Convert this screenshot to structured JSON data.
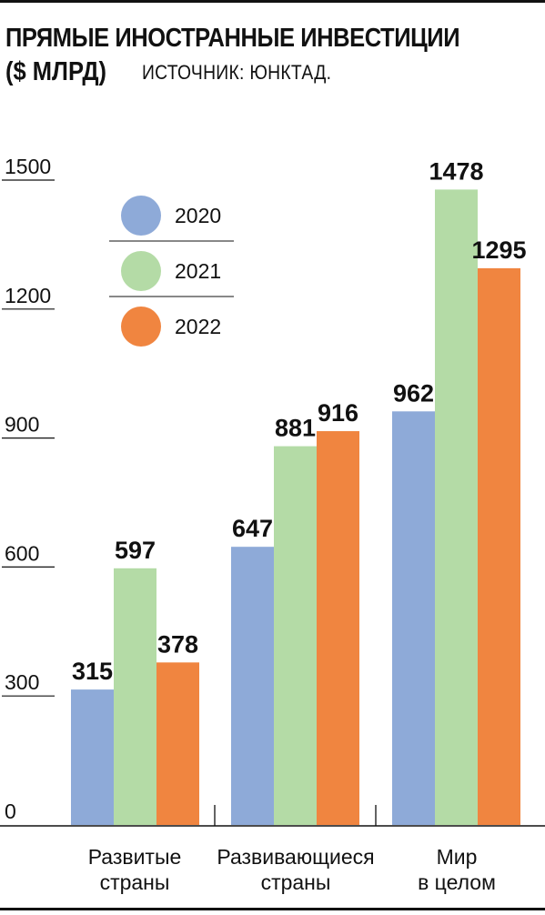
{
  "title": "ПРЯМЫЕ ИНОСТРАННЫЕ ИНВЕСТИЦИИ",
  "unit": "($ МЛРД)",
  "source": "ИСТОЧНИК: ЮНКТАД.",
  "chart_data": {
    "type": "bar",
    "categories": [
      [
        "Развитые",
        "страны"
      ],
      [
        "Развивающиеся",
        "страны"
      ],
      [
        "Мир",
        "в целом"
      ]
    ],
    "series": [
      {
        "name": "2020",
        "color": "#8eaad8",
        "values": [
          315,
          647,
          962
        ]
      },
      {
        "name": "2021",
        "color": "#b4dba6",
        "values": [
          597,
          881,
          1478
        ]
      },
      {
        "name": "2022",
        "color": "#f08540",
        "values": [
          378,
          916,
          1295
        ]
      }
    ],
    "yticks": [
      0,
      300,
      600,
      900,
      1200,
      1500
    ],
    "ylim": [
      0,
      1500
    ],
    "legend": "top-left",
    "grid": false
  }
}
